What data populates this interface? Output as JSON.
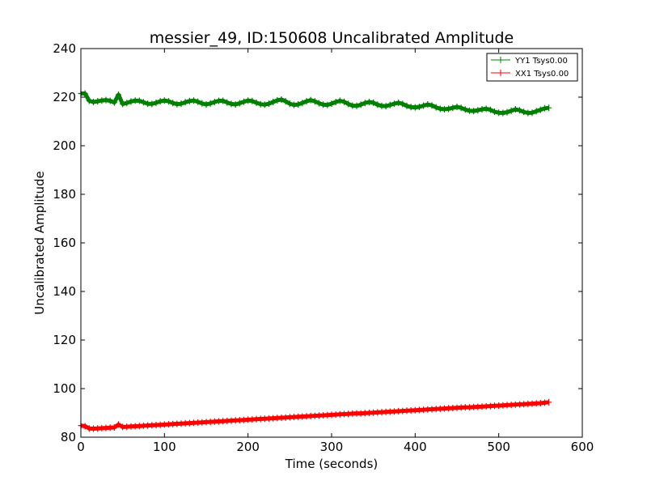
{
  "chart_data": {
    "type": "line",
    "title": "messier_49, ID:150608 Uncalibrated Amplitude",
    "xlabel": "Time (seconds)",
    "ylabel": "Uncalibrated Amplitude",
    "xlim": [
      0,
      600
    ],
    "ylim": [
      80,
      240
    ],
    "xticks": [
      0,
      100,
      200,
      300,
      400,
      500,
      600
    ],
    "yticks": [
      80,
      100,
      120,
      140,
      160,
      180,
      200,
      220,
      240
    ],
    "grid": false,
    "legend_position": "top-right",
    "x_start": 0,
    "x_step": 5,
    "series": [
      {
        "name": "YY1 Tsys0.00",
        "color": "#008000",
        "values": [
          221.5,
          221.5,
          218.5,
          218,
          218.3,
          218.6,
          218.8,
          218.5,
          217.8,
          221,
          217.2,
          217.6,
          218.2,
          218.6,
          218.5,
          217.9,
          217.3,
          217.2,
          217.7,
          218.3,
          218.6,
          218.3,
          217.6,
          217.1,
          217.3,
          217.9,
          218.4,
          218.6,
          218.1,
          217.4,
          217.0,
          217.4,
          218.0,
          218.5,
          218.5,
          217.8,
          217.2,
          217.0,
          217.5,
          218.1,
          218.6,
          218.4,
          217.7,
          217.1,
          216.9,
          217.3,
          218.0,
          218.7,
          219.0,
          218.3,
          217.3,
          216.8,
          217.0,
          217.6,
          218.3,
          218.8,
          218.3,
          217.5,
          216.9,
          216.8,
          217.3,
          218.0,
          218.5,
          218.1,
          217.2,
          216.5,
          216.4,
          216.9,
          217.6,
          218.0,
          217.7,
          216.9,
          216.4,
          216.3,
          216.8,
          217.3,
          217.7,
          217.2,
          216.4,
          215.9,
          215.8,
          216.0,
          216.5,
          217.0,
          216.6,
          215.8,
          215.2,
          215.0,
          215.2,
          215.6,
          216.0,
          215.6,
          214.9,
          214.4,
          214.3,
          214.6,
          215.0,
          215.2,
          214.8,
          214.0,
          213.6,
          213.5,
          213.8,
          214.4,
          215.0,
          214.6,
          213.9,
          213.5,
          213.6,
          214.2,
          214.8,
          215.4,
          215.6
        ]
      },
      {
        "name": "XX1 Tsys0.00",
        "color": "#ff0000",
        "values": [
          84.8,
          84.5,
          83.6,
          83.5,
          83.6,
          83.7,
          83.8,
          83.9,
          84.0,
          85.2,
          84.2,
          84.3,
          84.4,
          84.5,
          84.6,
          84.7,
          84.8,
          84.9,
          85.0,
          85.1,
          85.2,
          85.3,
          85.4,
          85.5,
          85.6,
          85.7,
          85.8,
          85.9,
          86.0,
          86.1,
          86.2,
          86.3,
          86.4,
          86.5,
          86.6,
          86.7,
          86.8,
          86.9,
          87.0,
          87.1,
          87.2,
          87.3,
          87.4,
          87.5,
          87.6,
          87.7,
          87.8,
          87.9,
          88.0,
          88.1,
          88.2,
          88.3,
          88.4,
          88.5,
          88.6,
          88.7,
          88.8,
          88.9,
          89.0,
          89.1,
          89.2,
          89.3,
          89.4,
          89.5,
          89.6,
          89.7,
          89.8,
          89.8,
          89.9,
          90.0,
          90.1,
          90.2,
          90.3,
          90.4,
          90.5,
          90.6,
          90.7,
          90.8,
          90.9,
          91.0,
          91.1,
          91.2,
          91.3,
          91.4,
          91.5,
          91.6,
          91.7,
          91.8,
          91.9,
          92.0,
          92.1,
          92.2,
          92.3,
          92.3,
          92.4,
          92.5,
          92.6,
          92.7,
          92.8,
          92.9,
          93.0,
          93.1,
          93.2,
          93.3,
          93.4,
          93.5,
          93.6,
          93.7,
          93.8,
          93.9,
          94.0,
          94.2,
          94.4
        ]
      }
    ]
  }
}
